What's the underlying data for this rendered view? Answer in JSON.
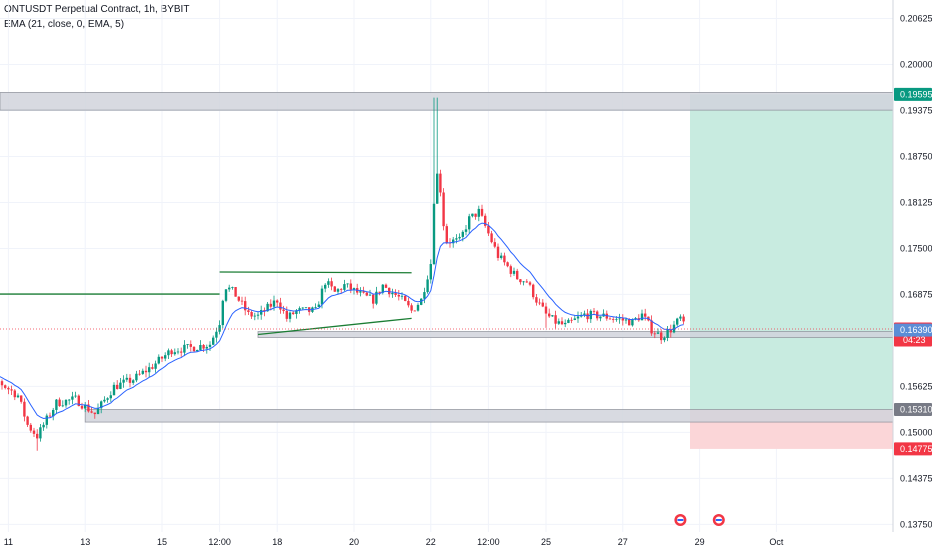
{
  "header": {
    "symbol_line": "ONTUSDT Perpetual Contract, 1h, BYBIT",
    "indicator_line": "EMA (21, close, 0, EMA, 5)"
  },
  "colors": {
    "up": "#089981",
    "down": "#f23645",
    "ema": "#2962ff",
    "zone": "#d1d4dc",
    "trendline": "#1b7d34",
    "profit_zone": "#c8ebe0",
    "loss_zone": "#fbd6d8",
    "price_tag": "#f23645",
    "zone_tag": "#5b8dd6",
    "target_tag": "#089981",
    "stop_tag": "#f23645"
  },
  "chart_data": {
    "type": "candlestick",
    "title": "ONTUSDT Perpetual Contract, 1h, BYBIT",
    "indicator": "EMA (21, close, 0, EMA, 5)",
    "y_ticks": [
      "0.20625",
      "0.20000",
      "0.19375",
      "0.18750",
      "0.18125",
      "0.17500",
      "0.16875",
      "0.15625",
      "0.15000",
      "0.14375",
      "0.13750"
    ],
    "x_ticks": [
      "11",
      "13",
      "15",
      "12:00",
      "18",
      "20",
      "22",
      "12:00",
      "25",
      "27",
      "29",
      "Oct"
    ],
    "ylim": [
      0.137,
      0.2085
    ],
    "price_labels": {
      "target": "0.19595",
      "current": "0.16405",
      "countdown": "04:23",
      "support_zone_top": "0.16390",
      "entry_zone": "0.15310",
      "stop": "0.14775"
    },
    "zones": [
      {
        "name": "resistance",
        "from": 0.1938,
        "to": 0.1962
      },
      {
        "name": "support",
        "from": 0.1629,
        "to": 0.1637
      },
      {
        "name": "demand",
        "from": 0.1514,
        "to": 0.1531
      }
    ],
    "trendlines": [
      {
        "name": "horizontal-left",
        "from": [
          "10 00:00",
          0.1688
        ],
        "to": [
          "16 12:00",
          0.1688
        ]
      },
      {
        "name": "upper-rising",
        "from": [
          "16 12:00",
          0.1718
        ],
        "to": [
          "21 12:00",
          0.1717
        ]
      },
      {
        "name": "lower-rising",
        "from": [
          "17 12:00",
          0.1633
        ],
        "to": [
          "21 12:00",
          0.1655
        ]
      }
    ],
    "position": {
      "entry": 0.1531,
      "target": 0.19595,
      "stop": 0.14775
    },
    "anchors": [
      [
        "10 00:00",
        0.158
      ],
      [
        "10 12:00",
        0.1578
      ],
      [
        "11 06:00",
        0.155
      ],
      [
        "11 12:00",
        0.151
      ],
      [
        "11 18:00",
        0.1495
      ],
      [
        "12 06:00",
        0.154
      ],
      [
        "12 18:00",
        0.1545
      ],
      [
        "13 06:00",
        0.1525
      ],
      [
        "13 18:00",
        0.1562
      ],
      [
        "14 06:00",
        0.1572
      ],
      [
        "14 18:00",
        0.159
      ],
      [
        "15 06:00",
        0.1612
      ],
      [
        "15 18:00",
        0.1615
      ],
      [
        "16 06:00",
        0.162
      ],
      [
        "16 12:00",
        0.165
      ],
      [
        "16 15:00",
        0.17
      ],
      [
        "16 21:00",
        0.169
      ],
      [
        "17 06:00",
        0.166
      ],
      [
        "17 12:00",
        0.1658
      ],
      [
        "18 00:00",
        0.168
      ],
      [
        "18 06:00",
        0.1655
      ],
      [
        "18 12:00",
        0.1665
      ],
      [
        "19 00:00",
        0.1665
      ],
      [
        "19 06:00",
        0.1705
      ],
      [
        "19 12:00",
        0.169
      ],
      [
        "19 18:00",
        0.17
      ],
      [
        "20 06:00",
        0.1685
      ],
      [
        "20 12:00",
        0.168
      ],
      [
        "20 18:00",
        0.17
      ],
      [
        "21 06:00",
        0.168
      ],
      [
        "21 12:00",
        0.1665
      ],
      [
        "21 18:00",
        0.168
      ],
      [
        "22 00:00",
        0.173
      ],
      [
        "22 03:00",
        0.186
      ],
      [
        "22 06:00",
        0.183
      ],
      [
        "22 09:00",
        0.176
      ],
      [
        "22 18:00",
        0.176
      ],
      [
        "23 00:00",
        0.179
      ],
      [
        "23 06:00",
        0.18
      ],
      [
        "23 12:00",
        0.177
      ],
      [
        "23 18:00",
        0.174
      ],
      [
        "24 06:00",
        0.171
      ],
      [
        "24 12:00",
        0.1705
      ],
      [
        "24 18:00",
        0.168
      ],
      [
        "25 00:00",
        0.166
      ],
      [
        "25 06:00",
        0.165
      ],
      [
        "25 12:00",
        0.1645
      ],
      [
        "26 00:00",
        0.166
      ],
      [
        "26 12:00",
        0.1658
      ],
      [
        "26 18:00",
        0.1655
      ],
      [
        "27 06:00",
        0.165
      ],
      [
        "27 12:00",
        0.166
      ],
      [
        "27 18:00",
        0.164
      ],
      [
        "28 00:00",
        0.163
      ],
      [
        "28 06:00",
        0.164
      ],
      [
        "28 12:00",
        0.1655
      ],
      [
        "28 15:00",
        0.164
      ]
    ]
  }
}
